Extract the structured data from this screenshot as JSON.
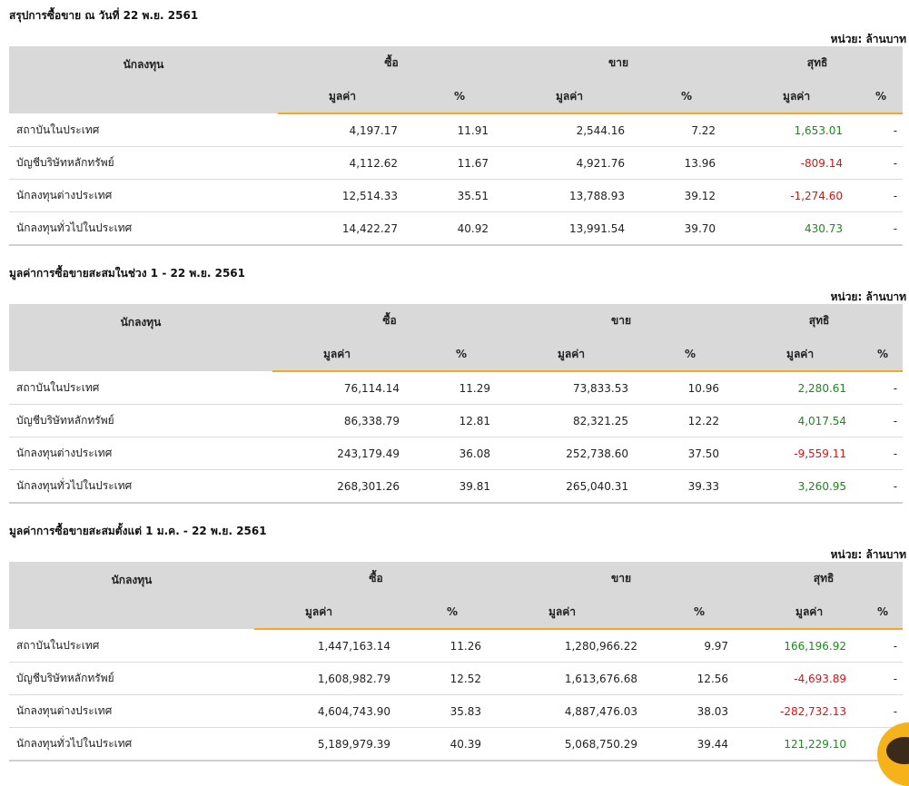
{
  "unit_label": "หน่วย: ล้านบาท",
  "headers": {
    "investor": "นักลงทุน",
    "buy": "ซื้อ",
    "sell": "ขาย",
    "net": "สุทธิ",
    "value": "มูลค่า",
    "percent": "%"
  },
  "sections": [
    {
      "title": "สรุปการซื้อขาย ณ วันที่ 22 พ.ย. 2561",
      "rows": [
        {
          "investor": "สถาบันในประเทศ",
          "buy_value": "4,197.17",
          "buy_pct": "11.91",
          "sell_value": "2,544.16",
          "sell_pct": "7.22",
          "net_value": "1,653.01",
          "net_pct": "-",
          "net_sign": "pos"
        },
        {
          "investor": "บัญชีบริษัทหลักทรัพย์",
          "buy_value": "4,112.62",
          "buy_pct": "11.67",
          "sell_value": "4,921.76",
          "sell_pct": "13.96",
          "net_value": "-809.14",
          "net_pct": "-",
          "net_sign": "neg"
        },
        {
          "investor": "นักลงทุนต่างประเทศ",
          "buy_value": "12,514.33",
          "buy_pct": "35.51",
          "sell_value": "13,788.93",
          "sell_pct": "39.12",
          "net_value": "-1,274.60",
          "net_pct": "-",
          "net_sign": "neg"
        },
        {
          "investor": "นักลงทุนทั่วไปในประเทศ",
          "buy_value": "14,422.27",
          "buy_pct": "40.92",
          "sell_value": "13,991.54",
          "sell_pct": "39.70",
          "net_value": "430.73",
          "net_pct": "-",
          "net_sign": "pos"
        }
      ]
    },
    {
      "title": "มูลค่าการซื้อขายสะสมในช่วง 1 - 22 พ.ย. 2561",
      "rows": [
        {
          "investor": "สถาบันในประเทศ",
          "buy_value": "76,114.14",
          "buy_pct": "11.29",
          "sell_value": "73,833.53",
          "sell_pct": "10.96",
          "net_value": "2,280.61",
          "net_pct": "-",
          "net_sign": "pos"
        },
        {
          "investor": "บัญชีบริษัทหลักทรัพย์",
          "buy_value": "86,338.79",
          "buy_pct": "12.81",
          "sell_value": "82,321.25",
          "sell_pct": "12.22",
          "net_value": "4,017.54",
          "net_pct": "-",
          "net_sign": "pos"
        },
        {
          "investor": "นักลงทุนต่างประเทศ",
          "buy_value": "243,179.49",
          "buy_pct": "36.08",
          "sell_value": "252,738.60",
          "sell_pct": "37.50",
          "net_value": "-9,559.11",
          "net_pct": "-",
          "net_sign": "neg"
        },
        {
          "investor": "นักลงทุนทั่วไปในประเทศ",
          "buy_value": "268,301.26",
          "buy_pct": "39.81",
          "sell_value": "265,040.31",
          "sell_pct": "39.33",
          "net_value": "3,260.95",
          "net_pct": "-",
          "net_sign": "pos"
        }
      ]
    },
    {
      "title": "มูลค่าการซื้อขายสะสมตั้งแต่ 1 ม.ค. - 22 พ.ย. 2561",
      "rows": [
        {
          "investor": "สถาบันในประเทศ",
          "buy_value": "1,447,163.14",
          "buy_pct": "11.26",
          "sell_value": "1,280,966.22",
          "sell_pct": "9.97",
          "net_value": "166,196.92",
          "net_pct": "-",
          "net_sign": "pos"
        },
        {
          "investor": "บัญชีบริษัทหลักทรัพย์",
          "buy_value": "1,608,982.79",
          "buy_pct": "12.52",
          "sell_value": "1,613,676.68",
          "sell_pct": "12.56",
          "net_value": "-4,693.89",
          "net_pct": "-",
          "net_sign": "neg"
        },
        {
          "investor": "นักลงทุนต่างประเทศ",
          "buy_value": "4,604,743.90",
          "buy_pct": "35.83",
          "sell_value": "4,887,476.03",
          "sell_pct": "38.03",
          "net_value": "-282,732.13",
          "net_pct": "-",
          "net_sign": "neg"
        },
        {
          "investor": "นักลงทุนทั่วไปในประเทศ",
          "buy_value": "5,189,979.39",
          "buy_pct": "40.39",
          "sell_value": "5,068,750.29",
          "sell_pct": "39.44",
          "net_value": "121,229.10",
          "net_pct": "-",
          "net_sign": "pos"
        }
      ]
    }
  ],
  "colors": {
    "positive": "#1a8a1a",
    "negative": "#dd1111",
    "header_bg": "#d9d9d9",
    "accent": "#f5a623"
  },
  "mascot_icon": "bull-mascot-icon"
}
